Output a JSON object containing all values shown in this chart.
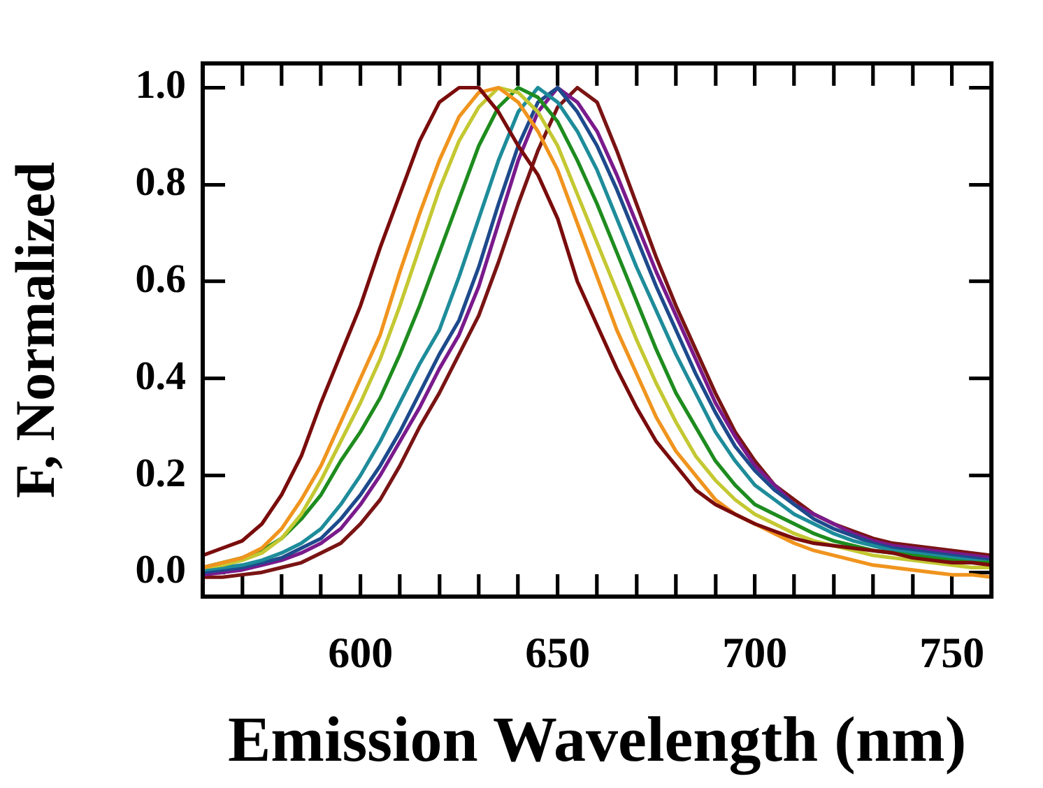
{
  "chart_data": {
    "type": "line",
    "xlabel": "Emission Wavelength (nm)",
    "ylabel": "F, Normalized",
    "x": [
      560,
      565,
      570,
      575,
      580,
      585,
      590,
      595,
      600,
      605,
      610,
      615,
      620,
      625,
      630,
      635,
      640,
      645,
      650,
      655,
      660,
      665,
      670,
      675,
      680,
      685,
      690,
      695,
      700,
      705,
      710,
      715,
      720,
      725,
      730,
      735,
      740,
      745,
      750,
      755,
      760
    ],
    "xlim": [
      560,
      760
    ],
    "xticks": [
      {
        "value": 570,
        "label": null
      },
      {
        "value": 580,
        "label": null
      },
      {
        "value": 590,
        "label": null
      },
      600,
      {
        "value": 610,
        "label": null
      },
      {
        "value": 620,
        "label": null
      },
      {
        "value": 630,
        "label": null
      },
      {
        "value": 640,
        "label": null
      },
      650,
      {
        "value": 660,
        "label": null
      },
      {
        "value": 670,
        "label": null
      },
      {
        "value": 680,
        "label": null
      },
      {
        "value": 690,
        "label": null
      },
      700,
      {
        "value": 710,
        "label": null
      },
      {
        "value": 720,
        "label": null
      },
      {
        "value": 730,
        "label": null
      },
      {
        "value": 740,
        "label": null
      },
      750
    ],
    "ylim": [
      -0.05,
      1.05
    ],
    "yticks": [
      {
        "value": 0,
        "label": "0.0"
      },
      0.2,
      0.4,
      0.6,
      0.8,
      {
        "value": 1,
        "label": "1.0"
      }
    ],
    "grid": false,
    "legend": false,
    "marker": "none",
    "line_style": "solid",
    "series": [
      {
        "color": "#7a0c0c",
        "values": [
          0.035,
          0.05,
          0.065,
          0.1,
          0.16,
          0.24,
          0.35,
          0.45,
          0.55,
          0.67,
          0.78,
          0.89,
          0.97,
          1.0,
          1.0,
          0.95,
          0.88,
          0.82,
          0.73,
          0.6,
          0.51,
          0.42,
          0.34,
          0.27,
          0.22,
          0.17,
          0.14,
          0.12,
          0.1,
          0.085,
          0.07,
          0.06,
          0.055,
          0.05,
          0.045,
          0.04,
          0.03,
          0.025,
          0.02,
          0.02,
          0.015
        ]
      },
      {
        "color": "#f0941e",
        "values": [
          0.01,
          0.02,
          0.03,
          0.05,
          0.09,
          0.15,
          0.22,
          0.31,
          0.4,
          0.49,
          0.62,
          0.74,
          0.85,
          0.94,
          0.99,
          1.0,
          0.97,
          0.91,
          0.83,
          0.72,
          0.61,
          0.5,
          0.41,
          0.32,
          0.25,
          0.2,
          0.15,
          0.12,
          0.1,
          0.08,
          0.06,
          0.045,
          0.035,
          0.025,
          0.015,
          0.01,
          0.005,
          0.0,
          -0.005,
          -0.005,
          -0.01
        ]
      },
      {
        "color": "#c4c832",
        "values": [
          0.01,
          0.015,
          0.025,
          0.04,
          0.07,
          0.12,
          0.19,
          0.27,
          0.35,
          0.44,
          0.55,
          0.67,
          0.79,
          0.89,
          0.96,
          1.0,
          0.99,
          0.95,
          0.88,
          0.78,
          0.68,
          0.58,
          0.48,
          0.39,
          0.31,
          0.24,
          0.19,
          0.15,
          0.12,
          0.1,
          0.08,
          0.065,
          0.055,
          0.045,
          0.035,
          0.03,
          0.025,
          0.02,
          0.015,
          0.01,
          0.01
        ]
      },
      {
        "color": "#1e8c1e",
        "values": [
          0.01,
          0.02,
          0.03,
          0.045,
          0.07,
          0.11,
          0.16,
          0.23,
          0.29,
          0.36,
          0.45,
          0.55,
          0.66,
          0.77,
          0.88,
          0.96,
          1.0,
          0.98,
          0.93,
          0.85,
          0.76,
          0.66,
          0.56,
          0.46,
          0.37,
          0.3,
          0.23,
          0.18,
          0.14,
          0.12,
          0.1,
          0.08,
          0.065,
          0.055,
          0.045,
          0.04,
          0.035,
          0.03,
          0.025,
          0.02,
          0.02
        ]
      },
      {
        "color": "#1e8c9a",
        "values": [
          0.005,
          0.01,
          0.015,
          0.025,
          0.04,
          0.06,
          0.09,
          0.14,
          0.2,
          0.27,
          0.35,
          0.43,
          0.5,
          0.61,
          0.73,
          0.85,
          0.95,
          1.0,
          0.97,
          0.91,
          0.83,
          0.73,
          0.63,
          0.54,
          0.45,
          0.37,
          0.29,
          0.23,
          0.18,
          0.15,
          0.12,
          0.1,
          0.08,
          0.065,
          0.055,
          0.045,
          0.04,
          0.035,
          0.03,
          0.025,
          0.02
        ]
      },
      {
        "color": "#1e4a8c",
        "values": [
          0.0,
          0.005,
          0.01,
          0.02,
          0.03,
          0.05,
          0.07,
          0.11,
          0.16,
          0.22,
          0.29,
          0.37,
          0.45,
          0.52,
          0.63,
          0.76,
          0.88,
          0.97,
          1.0,
          0.95,
          0.88,
          0.79,
          0.69,
          0.59,
          0.5,
          0.41,
          0.33,
          0.26,
          0.21,
          0.17,
          0.14,
          0.11,
          0.09,
          0.075,
          0.06,
          0.05,
          0.045,
          0.04,
          0.035,
          0.03,
          0.025
        ]
      },
      {
        "color": "#7a1a8c",
        "values": [
          -0.005,
          0.0,
          0.005,
          0.015,
          0.025,
          0.04,
          0.06,
          0.09,
          0.14,
          0.2,
          0.27,
          0.34,
          0.42,
          0.49,
          0.59,
          0.72,
          0.85,
          0.95,
          1.0,
          0.97,
          0.91,
          0.82,
          0.72,
          0.62,
          0.53,
          0.44,
          0.35,
          0.28,
          0.22,
          0.18,
          0.14,
          0.12,
          0.1,
          0.08,
          0.065,
          0.055,
          0.05,
          0.045,
          0.04,
          0.035,
          0.03
        ]
      },
      {
        "color": "#7a1414",
        "values": [
          -0.01,
          -0.01,
          -0.005,
          0.0,
          0.01,
          0.02,
          0.04,
          0.06,
          0.1,
          0.15,
          0.22,
          0.3,
          0.37,
          0.45,
          0.53,
          0.64,
          0.76,
          0.87,
          0.96,
          1.0,
          0.97,
          0.87,
          0.76,
          0.65,
          0.55,
          0.46,
          0.37,
          0.29,
          0.23,
          0.18,
          0.15,
          0.12,
          0.1,
          0.085,
          0.07,
          0.06,
          0.055,
          0.05,
          0.045,
          0.04,
          0.035
        ]
      }
    ]
  }
}
